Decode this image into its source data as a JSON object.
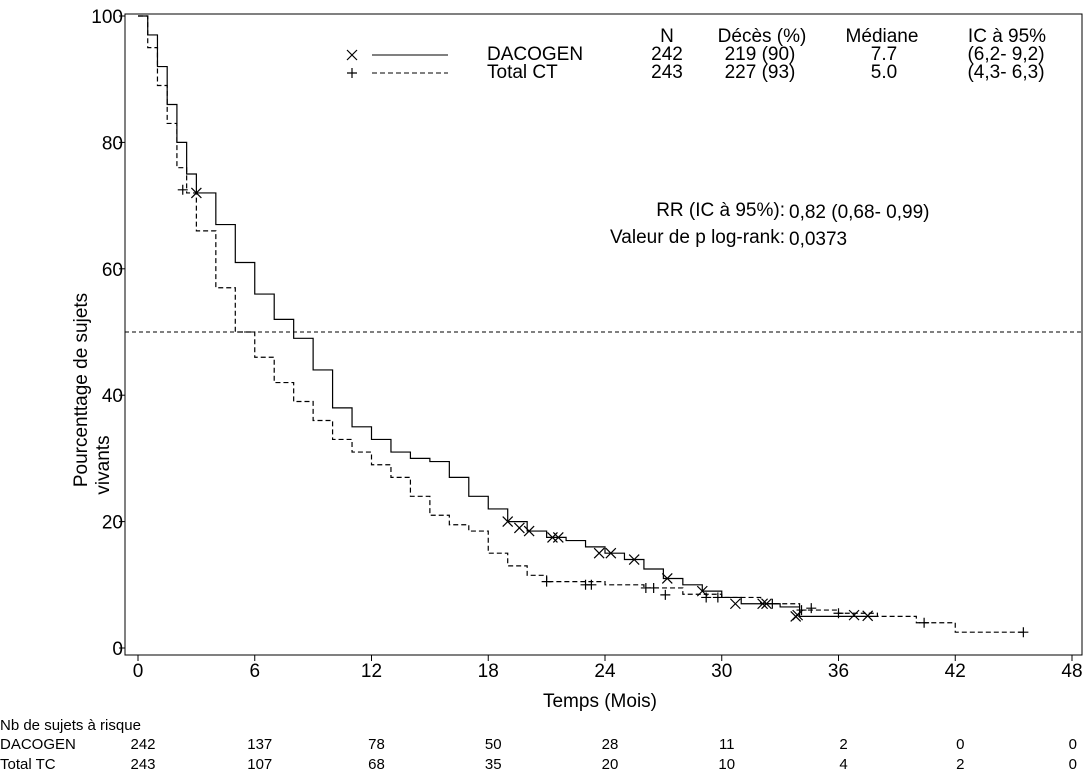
{
  "chart_data": {
    "type": "step",
    "x_label": "Temps (Mois)",
    "y_label": [
      "Pourcenttage de sujets",
      "vivants"
    ],
    "xlim": [
      0,
      48
    ],
    "xticks": [
      0,
      6,
      12,
      18,
      24,
      30,
      36,
      42,
      48
    ],
    "ylim": [
      0,
      100
    ],
    "yticks": [
      0,
      20,
      40,
      60,
      80,
      100
    ],
    "reference_line": 50,
    "legend_headers": [
      "N",
      "Décès (%)",
      "Médiane",
      "IC à 95%"
    ],
    "series": [
      {
        "name": "DACOGEN",
        "color": "#000000",
        "dashed": false,
        "marker": "x",
        "n": "242",
        "deaths": "219 (90)",
        "median": "7.7",
        "ci": "(6,2- 9,2)",
        "x": [
          0,
          0.5,
          1,
          1.5,
          2,
          2.5,
          3,
          4,
          5,
          6,
          7,
          8,
          9,
          10,
          11,
          12,
          13,
          14,
          15,
          16,
          17,
          18,
          19,
          20,
          21,
          22,
          23,
          24,
          25,
          26,
          27,
          28,
          29,
          30,
          31,
          32,
          33,
          34,
          38
        ],
        "values": [
          100,
          97,
          92,
          86,
          80,
          75,
          72,
          67,
          61,
          56,
          52,
          49,
          44,
          38,
          35,
          33,
          31,
          30,
          29.5,
          27,
          24,
          22,
          20,
          18.5,
          17.5,
          17,
          16,
          15,
          14,
          12.5,
          11,
          10,
          9,
          8,
          7,
          7,
          6.5,
          5,
          5
        ],
        "censor_x": [
          3,
          19,
          19.6,
          20.1,
          21.3,
          21.6,
          23.7,
          24.3,
          25.5,
          27.2,
          29,
          30.7,
          32.1,
          32.3,
          33.8,
          33.9,
          36.8,
          37.5
        ],
        "censor_y": [
          72,
          20,
          19,
          18.5,
          17.5,
          17.5,
          15,
          15,
          14,
          11,
          9,
          7,
          7,
          7,
          5,
          5.2,
          5.2,
          5.1
        ]
      },
      {
        "name": "Total CT",
        "color": "#000000",
        "dashed": true,
        "marker": "+",
        "n": "243",
        "deaths": "227 (93)",
        "median": "5.0",
        "ci": "(4,3- 6,3)",
        "x": [
          0,
          0.5,
          1,
          1.5,
          2,
          2.5,
          3,
          4,
          5,
          6,
          7,
          8,
          9,
          10,
          11,
          12,
          13,
          14,
          15,
          16,
          17,
          18,
          19,
          20,
          21,
          24,
          26,
          28,
          30,
          32,
          34,
          36,
          38,
          40,
          42,
          45.5
        ],
        "values": [
          100,
          95,
          89,
          83,
          76,
          72,
          66,
          57,
          50,
          46,
          42,
          39,
          36,
          33,
          31,
          29,
          27,
          24,
          21,
          19.5,
          18.5,
          15,
          13,
          11.5,
          10.5,
          10,
          9.5,
          8.5,
          8,
          7,
          6,
          5.5,
          5,
          4,
          2.5,
          2.5
        ],
        "censor_x": [
          2.3,
          21,
          23,
          23.3,
          26.1,
          26.5,
          27.1,
          29.2,
          29.8,
          32.6,
          34.1,
          34.6,
          36,
          40.4,
          45.5
        ],
        "censor_y": [
          72.5,
          10.5,
          10,
          10,
          9.5,
          9.5,
          8.4,
          8,
          8,
          7,
          6,
          6.3,
          5.5,
          4,
          2.5
        ]
      }
    ],
    "annotations": [
      {
        "label": "RR (IC à 95%):",
        "value": "0,82 (0,68- 0,99)"
      },
      {
        "label": "Valeur de p log-rank:",
        "value": "0,0373"
      }
    ],
    "risk_table": {
      "title": "Nb de sujets à risque",
      "rows": [
        {
          "label": "DACOGEN",
          "values": [
            242,
            137,
            78,
            50,
            28,
            11,
            2,
            0,
            0
          ]
        },
        {
          "label": "Total TC",
          "values": [
            243,
            107,
            68,
            35,
            20,
            10,
            4,
            2,
            0
          ]
        }
      ]
    }
  }
}
